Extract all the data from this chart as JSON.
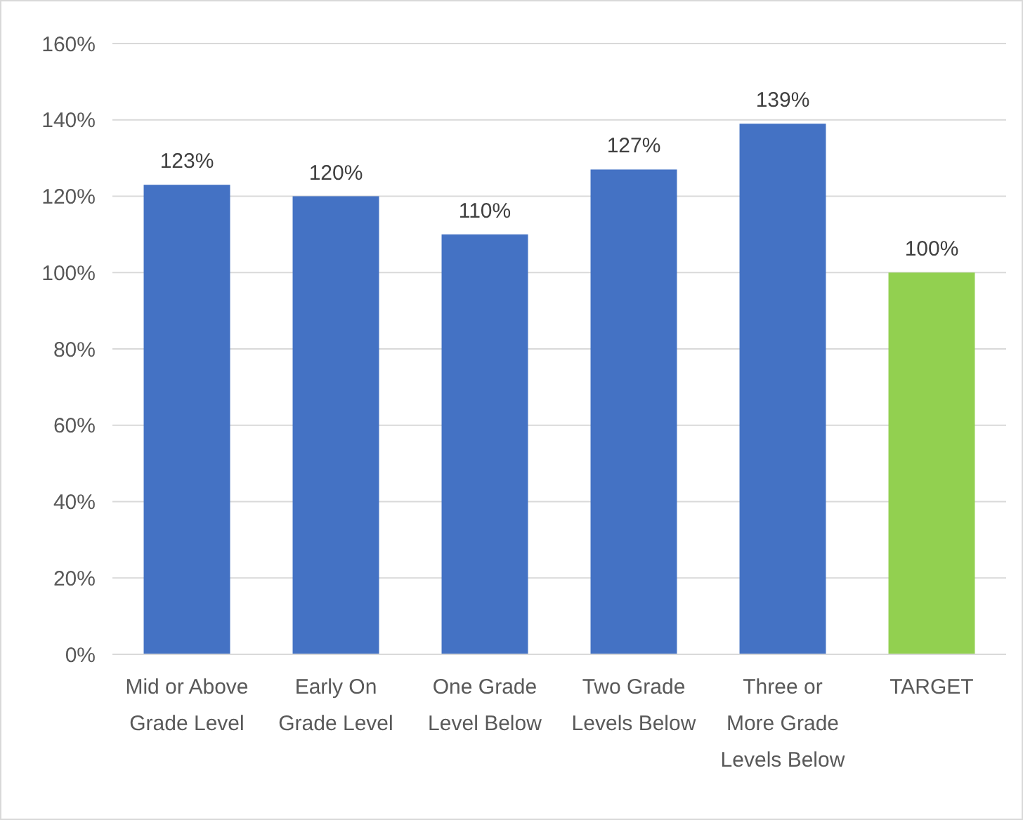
{
  "chart_data": {
    "type": "bar",
    "categories": [
      "Mid or Above Grade Level",
      "Early On Grade Level",
      "One Grade Level Below",
      "Two Grade Levels Below",
      "Three or More Grade Levels Below",
      "TARGET"
    ],
    "values": [
      123,
      120,
      110,
      127,
      139,
      100
    ],
    "colors": [
      "#4472c4",
      "#4472c4",
      "#4472c4",
      "#4472c4",
      "#4472c4",
      "#92d050"
    ],
    "value_labels": [
      "123%",
      "120%",
      "110%",
      "127%",
      "139%",
      "100%"
    ],
    "ylim": [
      0,
      160
    ],
    "yticks": [
      {
        "value": 0,
        "label": "0%"
      },
      {
        "value": 20,
        "label": "20%"
      },
      {
        "value": 40,
        "label": "40%"
      },
      {
        "value": 60,
        "label": "60%"
      },
      {
        "value": 80,
        "label": "80%"
      },
      {
        "value": 100,
        "label": "100%"
      },
      {
        "value": 120,
        "label": "120%"
      },
      {
        "value": 140,
        "label": "140%"
      },
      {
        "value": 160,
        "label": "160%"
      }
    ],
    "grid": "y"
  }
}
